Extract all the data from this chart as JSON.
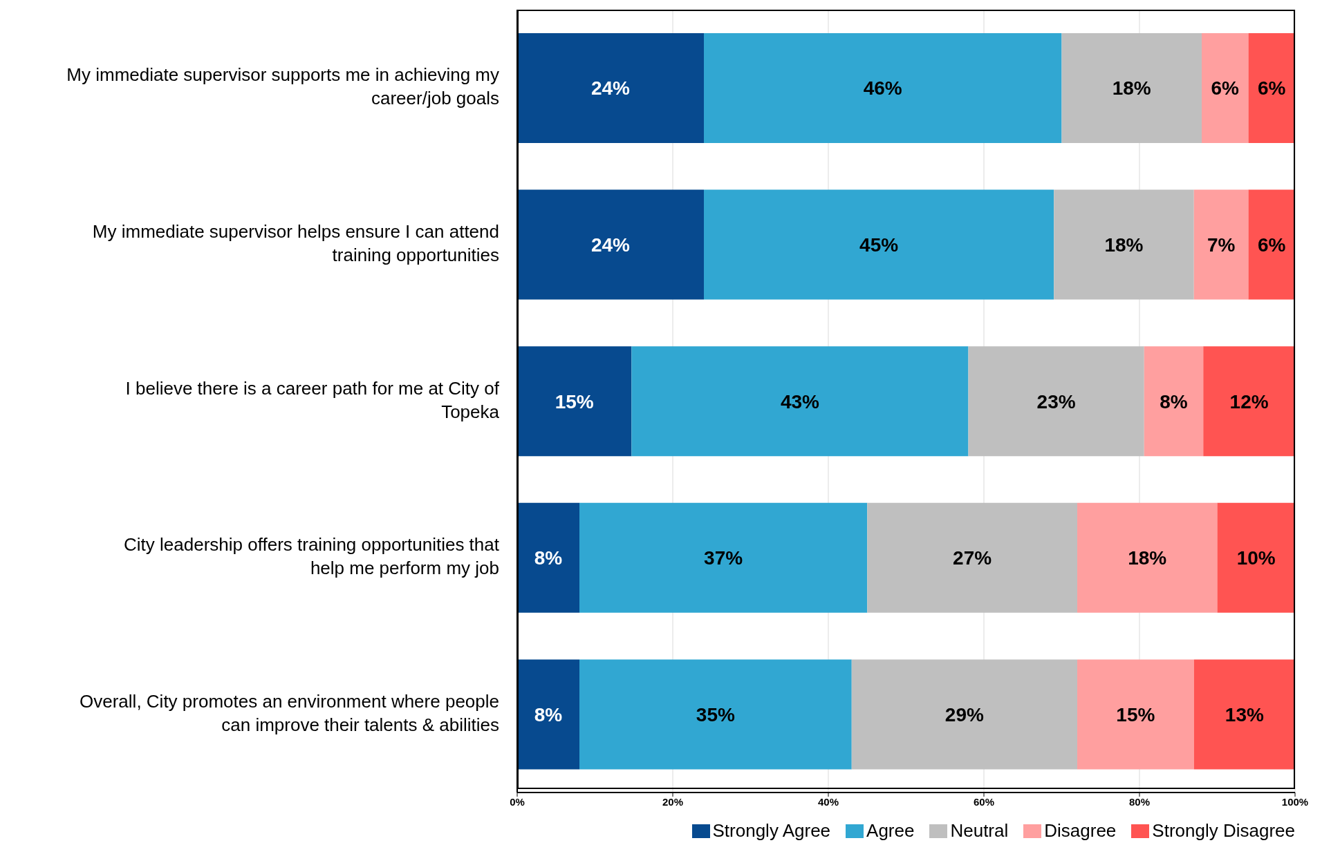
{
  "chart_data": {
    "type": "bar",
    "orientation": "horizontal",
    "stacked": true,
    "categories": [
      "My immediate supervisor supports me in achieving my career/job goals",
      "My immediate supervisor helps ensure I can attend training opportunities",
      "I believe there is a career path for me at City of Topeka",
      "City leadership offers training opportunities that help me perform my job",
      "Overall, City promotes an environment where people can improve their talents & abilities"
    ],
    "series": [
      {
        "name": "Strongly Agree",
        "color": "#074a8f",
        "values": [
          24,
          24,
          14.7,
          8,
          8
        ],
        "value_labels": [
          "24%",
          "24%",
          "15%",
          "8%",
          "8%"
        ]
      },
      {
        "name": "Agree",
        "color": "#31a7d2",
        "values": [
          46,
          45,
          43.3,
          37,
          35
        ],
        "value_labels": [
          "46%",
          "45%",
          "43%",
          "37%",
          "35%"
        ]
      },
      {
        "name": "Neutral",
        "color": "#bfbfbf",
        "values": [
          18,
          18,
          22.6,
          27,
          29
        ],
        "value_labels": [
          "18%",
          "18%",
          "23%",
          "27%",
          "29%"
        ]
      },
      {
        "name": "Disagree",
        "color": "#ff9f9f",
        "values": [
          6,
          7,
          7.6,
          18,
          15
        ],
        "value_labels": [
          "6%",
          "7%",
          "8%",
          "18%",
          "15%"
        ]
      },
      {
        "name": "Strongly Disagree",
        "color": "#ff5452",
        "values": [
          6,
          6,
          11.8,
          10,
          13
        ],
        "value_labels": [
          "6%",
          "6%",
          "12%",
          "10%",
          "13%"
        ]
      }
    ],
    "xlim": [
      0,
      100
    ],
    "xticks": [
      {
        "value": 0,
        "label": "0%"
      },
      {
        "value": 20,
        "label": "20%"
      },
      {
        "value": 40,
        "label": "40%"
      },
      {
        "value": 60,
        "label": "60%"
      },
      {
        "value": 80,
        "label": "80%"
      },
      {
        "value": 100,
        "label": "100%"
      }
    ],
    "grid": "x",
    "legend": "bottom right"
  }
}
